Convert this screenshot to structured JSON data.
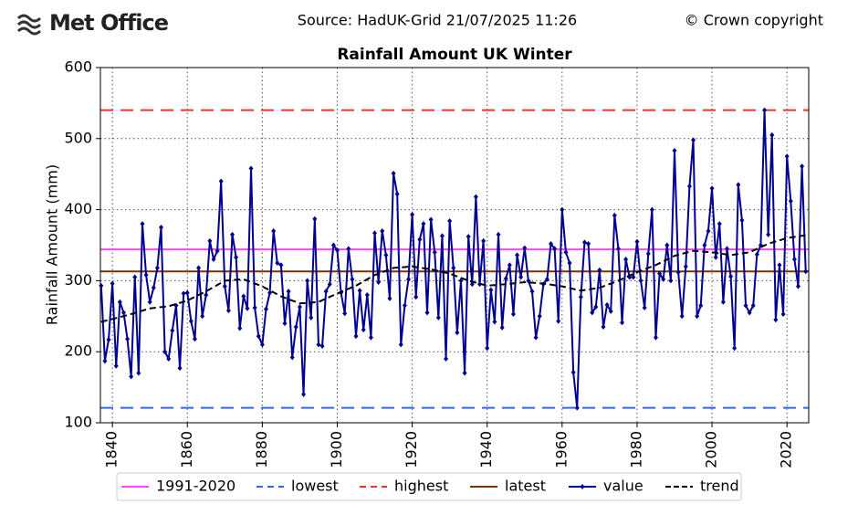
{
  "chart_data": {
    "type": "line",
    "logo": "Met Office",
    "source": "Source: HadUK-Grid 21/07/2025 11:26",
    "copyright": "© Crown copyright",
    "title": "Rainfall Amount UK Winter",
    "y_label": "Rainfall Amount (mm)",
    "xlim": [
      1836.8,
      2025.8
    ],
    "xticks": [
      1840,
      1860,
      1880,
      1900,
      1920,
      1940,
      1960,
      1980,
      2000,
      2020
    ],
    "ylim": [
      100,
      600
    ],
    "yticks": [
      100,
      200,
      300,
      400,
      500,
      600
    ],
    "grid": true,
    "legend": "bottom",
    "reference_lines": [
      {
        "name": "1991-2020",
        "color": "#ff44ff",
        "value": 344,
        "dash": false
      },
      {
        "name": "lowest",
        "color": "#3366e6",
        "value": 121,
        "dash": true
      },
      {
        "name": "highest",
        "color": "#f03232",
        "value": 540,
        "dash": true
      },
      {
        "name": "latest",
        "color": "#7a3300",
        "value": 313,
        "dash": false
      }
    ],
    "series": [
      {
        "name": "value",
        "color": "#000090",
        "marker": true,
        "dash": false,
        "x": [
          1837,
          1838,
          1839,
          1840,
          1841,
          1842,
          1843,
          1844,
          1845,
          1846,
          1847,
          1848,
          1849,
          1850,
          1851,
          1852,
          1853,
          1854,
          1855,
          1856,
          1857,
          1858,
          1859,
          1860,
          1861,
          1862,
          1863,
          1864,
          1865,
          1866,
          1867,
          1868,
          1869,
          1870,
          1871,
          1872,
          1873,
          1874,
          1875,
          1876,
          1877,
          1878,
          1879,
          1880,
          1881,
          1882,
          1883,
          1884,
          1885,
          1886,
          1887,
          1888,
          1889,
          1890,
          1891,
          1892,
          1893,
          1894,
          1895,
          1896,
          1897,
          1898,
          1899,
          1900,
          1901,
          1902,
          1903,
          1904,
          1905,
          1906,
          1907,
          1908,
          1909,
          1910,
          1911,
          1912,
          1913,
          1914,
          1915,
          1916,
          1917,
          1918,
          1919,
          1920,
          1921,
          1922,
          1923,
          1924,
          1925,
          1926,
          1927,
          1928,
          1929,
          1930,
          1931,
          1932,
          1933,
          1934,
          1935,
          1936,
          1937,
          1938,
          1939,
          1940,
          1941,
          1942,
          1943,
          1944,
          1945,
          1946,
          1947,
          1948,
          1949,
          1950,
          1951,
          1952,
          1953,
          1954,
          1955,
          1956,
          1957,
          1958,
          1959,
          1960,
          1961,
          1962,
          1963,
          1964,
          1965,
          1966,
          1967,
          1968,
          1969,
          1970,
          1971,
          1972,
          1973,
          1974,
          1975,
          1976,
          1977,
          1978,
          1979,
          1980,
          1981,
          1982,
          1983,
          1984,
          1985,
          1986,
          1987,
          1988,
          1989,
          1990,
          1991,
          1992,
          1993,
          1994,
          1995,
          1996,
          1997,
          1998,
          1999,
          2000,
          2001,
          2002,
          2003,
          2004,
          2005,
          2006,
          2007,
          2008,
          2009,
          2010,
          2011,
          2012,
          2013,
          2014,
          2015,
          2016,
          2017,
          2018,
          2019,
          2020,
          2021,
          2022,
          2023,
          2024,
          2025
        ],
        "values": [
          293,
          187,
          217,
          296,
          180,
          270,
          255,
          218,
          165,
          305,
          170,
          380,
          308,
          270,
          290,
          318,
          375,
          200,
          190,
          230,
          265,
          177,
          282,
          283,
          243,
          218,
          318,
          250,
          280,
          356,
          330,
          342,
          440,
          292,
          258,
          365,
          333,
          233,
          278,
          261,
          458,
          262,
          222,
          210,
          260,
          283,
          370,
          325,
          322,
          240,
          285,
          192,
          235,
          263,
          140,
          300,
          248,
          387,
          210,
          208,
          285,
          295,
          350,
          343,
          283,
          254,
          345,
          302,
          222,
          286,
          231,
          280,
          220,
          367,
          298,
          370,
          336,
          275,
          451,
          422,
          210,
          265,
          302,
          393,
          277,
          358,
          380,
          255,
          386,
          340,
          248,
          363,
          190,
          384,
          318,
          227,
          300,
          170,
          362,
          295,
          418,
          295,
          356,
          205,
          287,
          242,
          365,
          234,
          303,
          322,
          253,
          336,
          305,
          346,
          300,
          285,
          220,
          250,
          295,
          302,
          352,
          345,
          243,
          400,
          340,
          325,
          171,
          121,
          277,
          354,
          352,
          255,
          263,
          315,
          235,
          266,
          257,
          392,
          345,
          241,
          330,
          305,
          305,
          355,
          300,
          262,
          338,
          400,
          220,
          310,
          302,
          350,
          300,
          483,
          312,
          250,
          320,
          433,
          498,
          250,
          265,
          350,
          370,
          430,
          333,
          380,
          270,
          345,
          306,
          205,
          435,
          385,
          265,
          255,
          265,
          337,
          350,
          540,
          365,
          505,
          245,
          322,
          253,
          475,
          412,
          330,
          292,
          461,
          313
        ]
      },
      {
        "name": "trend",
        "color": "#000000",
        "marker": false,
        "dash": true,
        "x": [
          1837,
          1840,
          1845,
          1850,
          1855,
          1860,
          1865,
          1870,
          1875,
          1880,
          1885,
          1890,
          1895,
          1900,
          1905,
          1910,
          1915,
          1920,
          1925,
          1930,
          1935,
          1940,
          1945,
          1950,
          1955,
          1960,
          1965,
          1970,
          1975,
          1980,
          1985,
          1990,
          1995,
          2000,
          2005,
          2010,
          2015,
          2020,
          2025
        ],
        "values": [
          242,
          246,
          253,
          261,
          264,
          272,
          285,
          300,
          302,
          292,
          278,
          268,
          270,
          282,
          293,
          308,
          318,
          320,
          316,
          310,
          300,
          293,
          295,
          298,
          296,
          292,
          286,
          290,
          300,
          312,
          322,
          335,
          342,
          340,
          336,
          340,
          352,
          360,
          364
        ]
      }
    ]
  }
}
